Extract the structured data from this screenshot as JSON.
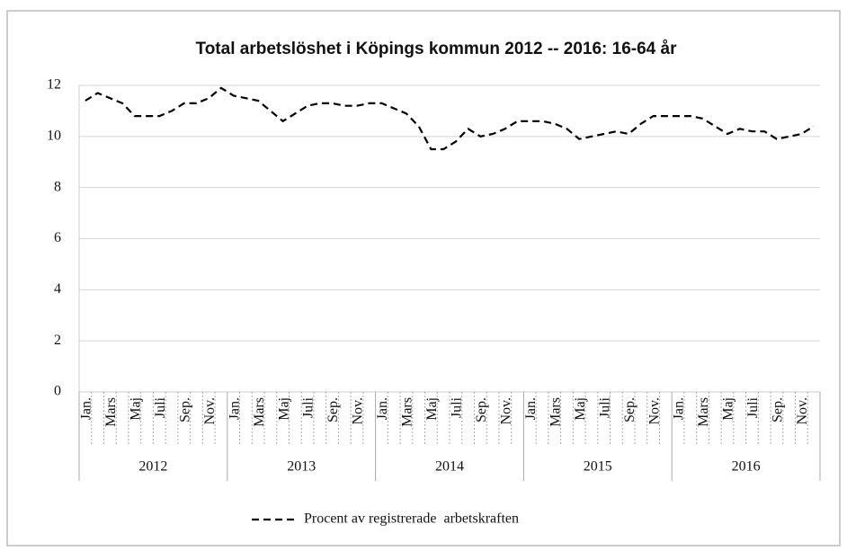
{
  "chart_data": {
    "type": "line",
    "title": "Total arbetslöshet i Köpings kommun 2012 -- 2016: 16-64 år",
    "categories": [
      "Jan.",
      null,
      "Mars",
      null,
      "Maj",
      null,
      "Juli",
      null,
      "Sep.",
      null,
      "Nov.",
      null,
      "Jan.",
      null,
      "Mars",
      null,
      "Maj",
      null,
      "Juli",
      null,
      "Sep.",
      null,
      "Nov.",
      null,
      "Jan.",
      null,
      "Mars",
      null,
      "Maj",
      null,
      "Juli",
      null,
      "Sep.",
      null,
      "Nov.",
      null,
      "Jan.",
      null,
      "Mars",
      null,
      "Maj",
      null,
      "Juli",
      null,
      "Sep.",
      null,
      "Nov.",
      null,
      "Jan.",
      null,
      "Mars",
      null,
      "Maj",
      null,
      "Juli",
      null,
      "Sep.",
      null,
      "Nov.",
      null
    ],
    "groups": [
      "2012",
      "2013",
      "2014",
      "2015",
      "2016"
    ],
    "series": [
      {
        "name": "Procent av registrerade  arbetskraften",
        "color": "#000000",
        "values": [
          11.4,
          11.7,
          11.5,
          11.3,
          10.8,
          10.8,
          10.8,
          11.0,
          11.3,
          11.3,
          11.5,
          11.9,
          11.6,
          11.5,
          11.4,
          11.0,
          10.6,
          10.9,
          11.2,
          11.3,
          11.3,
          11.2,
          11.2,
          11.3,
          11.3,
          11.1,
          10.9,
          10.4,
          9.5,
          9.5,
          9.8,
          10.3,
          10.0,
          10.1,
          10.3,
          10.6,
          10.6,
          10.6,
          10.5,
          10.3,
          9.9,
          10.0,
          10.1,
          10.2,
          10.1,
          10.5,
          10.8,
          10.8,
          10.8,
          10.8,
          10.7,
          10.4,
          10.1,
          10.3,
          10.2,
          10.2,
          9.9,
          10.0,
          10.1,
          10.4
        ]
      }
    ],
    "ylim": [
      0,
      12
    ],
    "yticks": [
      0,
      2,
      4,
      6,
      8,
      10,
      12
    ],
    "grid": true,
    "legend": "bottom"
  }
}
